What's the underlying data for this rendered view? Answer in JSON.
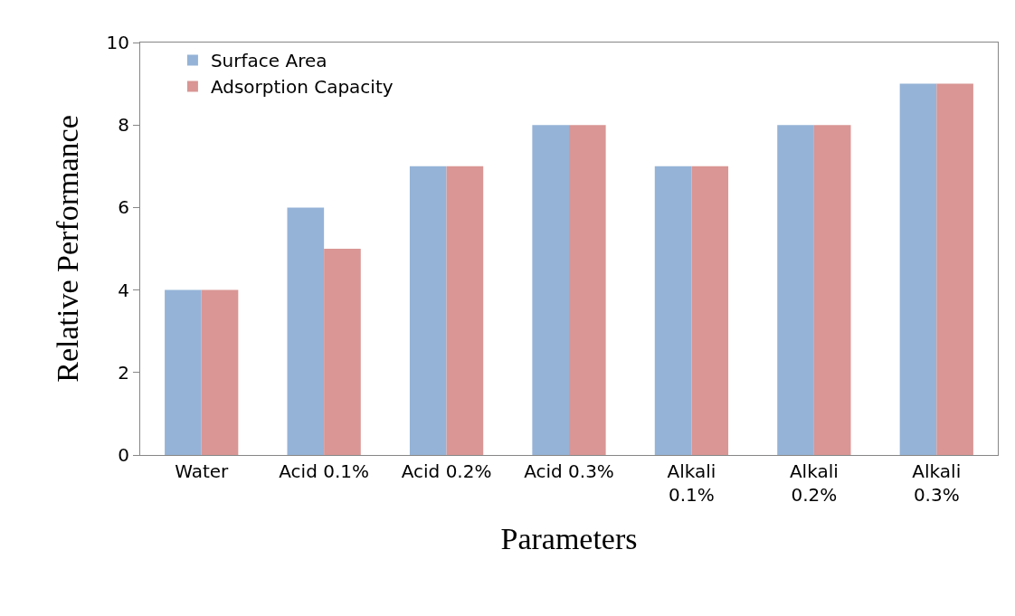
{
  "chart_data": {
    "type": "bar",
    "xlabel": "Parameters",
    "ylabel": "Relative Performance",
    "categories": [
      "Water",
      "Acid 0.1%",
      "Acid 0.2%",
      "Acid 0.3%",
      "Alkali 0.1%",
      "Alkali 0.2%",
      "Alkali 0.3%"
    ],
    "series": [
      {
        "name": "Surface Area",
        "color": "#95b3d7",
        "values": [
          4,
          6,
          7,
          8,
          7,
          8,
          9
        ]
      },
      {
        "name": "Adsorption Capacity",
        "color": "#d99694",
        "values": [
          4,
          5,
          7,
          8,
          7,
          8,
          9
        ]
      }
    ],
    "ylim": [
      0,
      10
    ],
    "yticks": [
      0,
      2,
      4,
      6,
      8,
      10
    ],
    "legend": "top left"
  }
}
